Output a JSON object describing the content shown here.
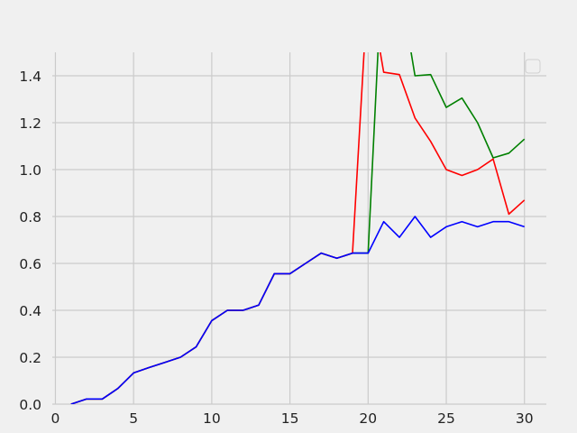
{
  "chart_data": {
    "type": "line",
    "title": "",
    "xlabel": "",
    "ylabel": "",
    "xlim": [
      -0.2,
      31.4
    ],
    "ylim": [
      0,
      1.5
    ],
    "x_ticks": [
      0,
      5,
      10,
      15,
      20,
      25,
      30
    ],
    "y_ticks": [
      0.0,
      0.2,
      0.4,
      0.6,
      0.8,
      1.0,
      1.2,
      1.4
    ],
    "x_tick_labels": [
      "0",
      "5",
      "10",
      "15",
      "20",
      "25",
      "30"
    ],
    "y_tick_labels": [
      "0.0",
      "0.2",
      "0.4",
      "0.6",
      "0.8",
      "1.0",
      "1.2",
      "1.4"
    ],
    "grid": true,
    "legend": {
      "placement": "top-right",
      "entries": []
    },
    "series": [
      {
        "color": "#008000",
        "x": [
          1,
          2,
          3,
          4,
          5,
          6,
          7,
          8,
          9,
          10,
          11,
          12,
          13,
          14,
          15,
          16,
          17,
          18,
          19,
          20,
          21,
          22,
          23,
          24,
          25,
          26,
          27,
          28,
          29,
          30
        ],
        "y": [
          0,
          0.022,
          0.022,
          0.067,
          0.133,
          0.156,
          0.178,
          0.2,
          0.244,
          0.356,
          0.4,
          0.4,
          0.422,
          0.556,
          0.556,
          0.6,
          0.644,
          0.622,
          0.644,
          0.644,
          2.0,
          1.8,
          1.4,
          1.405,
          1.265,
          1.305,
          1.2,
          1.05,
          1.07,
          1.13
        ]
      },
      {
        "color": "#ff0000",
        "x": [
          1,
          2,
          3,
          4,
          5,
          6,
          7,
          8,
          9,
          10,
          11,
          12,
          13,
          14,
          15,
          16,
          17,
          18,
          19,
          20,
          21,
          22,
          23,
          24,
          25,
          26,
          27,
          28,
          29,
          30
        ],
        "y": [
          0,
          0.022,
          0.022,
          0.067,
          0.133,
          0.156,
          0.178,
          0.2,
          0.244,
          0.356,
          0.4,
          0.4,
          0.422,
          0.556,
          0.556,
          0.6,
          0.644,
          0.622,
          0.644,
          1.8,
          1.415,
          1.405,
          1.22,
          1.12,
          1.0,
          0.975,
          1.0,
          1.045,
          0.81,
          0.87
        ]
      },
      {
        "color": "#0000ff",
        "x": [
          1,
          2,
          3,
          4,
          5,
          6,
          7,
          8,
          9,
          10,
          11,
          12,
          13,
          14,
          15,
          16,
          17,
          18,
          19,
          20,
          21,
          22,
          23,
          24,
          25,
          26,
          27,
          28,
          29,
          30
        ],
        "y": [
          0,
          0.022,
          0.022,
          0.067,
          0.133,
          0.156,
          0.178,
          0.2,
          0.244,
          0.356,
          0.4,
          0.4,
          0.422,
          0.556,
          0.556,
          0.6,
          0.644,
          0.622,
          0.644,
          0.644,
          0.778,
          0.711,
          0.8,
          0.711,
          0.756,
          0.778,
          0.756,
          0.778,
          0.778,
          0.756
        ]
      }
    ]
  }
}
